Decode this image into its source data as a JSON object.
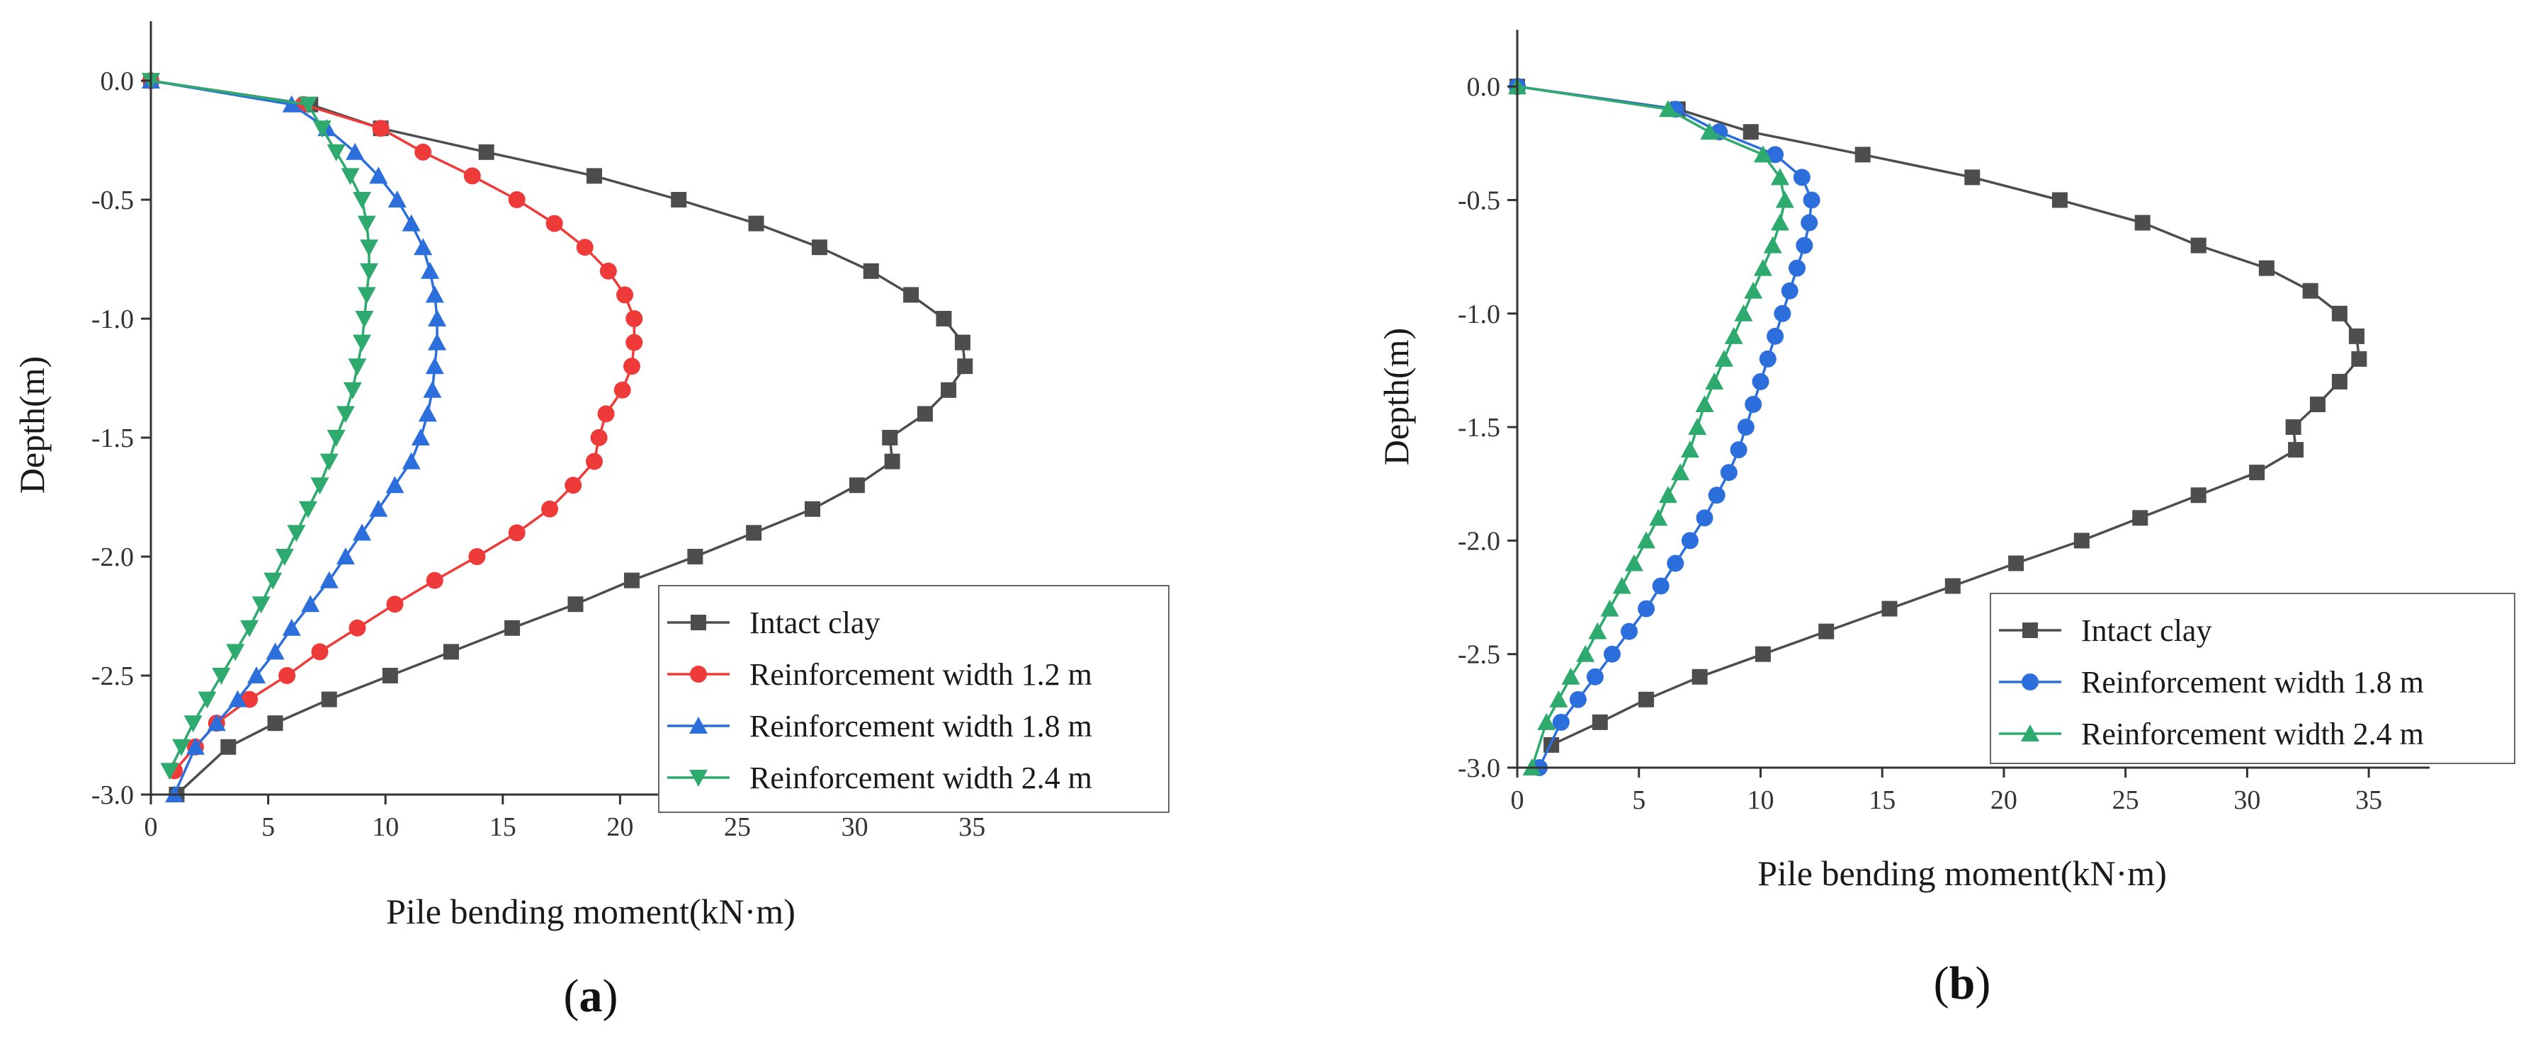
{
  "colors": {
    "intact": "#4d4d4d",
    "w12": "#ef3a3a",
    "w18": "#2c6fdc",
    "w24": "#2eaa6e"
  },
  "chart_data": [
    {
      "panel": "(a)",
      "panel_letter": "a",
      "type": "line",
      "xlabel": "Pile bending moment(kN·m)",
      "ylabel": "Depth(m)",
      "xlim": [
        0,
        37.5
      ],
      "ylim": [
        -3.0,
        0.25
      ],
      "xticks": [
        0,
        5,
        10,
        15,
        20,
        25,
        30,
        35
      ],
      "xtick_labels": [
        "0",
        "5",
        "10",
        "15",
        "20",
        "25",
        "30",
        "35"
      ],
      "yticks": [
        0,
        -0.5,
        -1,
        -1.5,
        -2,
        -2.5,
        -3
      ],
      "ytick_labels": [
        "0.0",
        "-0.5",
        "-1.0",
        "-1.5",
        "-2.0",
        "-2.5",
        "-3.0"
      ],
      "legend_position": "bottom-right",
      "series": [
        {
          "name": "Intact clay",
          "marker": "square",
          "color_key": "intact",
          "x": [
            0,
            6.8,
            9.8,
            14.3,
            18.9,
            22.5,
            25.8,
            28.5,
            30.7,
            32.4,
            33.8,
            34.6,
            34.7,
            34.0,
            33.0,
            31.5,
            31.6,
            30.1,
            28.2,
            25.7,
            23.2,
            20.5,
            18.1,
            15.4,
            12.8,
            10.2,
            7.6,
            5.3,
            3.3,
            1.1
          ],
          "y": [
            0,
            -0.1,
            -0.2,
            -0.3,
            -0.4,
            -0.5,
            -0.6,
            -0.7,
            -0.8,
            -0.9,
            -1.0,
            -1.1,
            -1.2,
            -1.3,
            -1.4,
            -1.5,
            -1.6,
            -1.7,
            -1.8,
            -1.9,
            -2.0,
            -2.1,
            -2.2,
            -2.3,
            -2.4,
            -2.5,
            -2.6,
            -2.7,
            -2.8,
            -3.0
          ]
        },
        {
          "name": "Reinforcement width 1.2 m",
          "marker": "circle",
          "color_key": "w12",
          "x": [
            0,
            6.5,
            9.8,
            11.6,
            13.7,
            15.6,
            17.2,
            18.5,
            19.5,
            20.2,
            20.6,
            20.6,
            20.5,
            20.1,
            19.4,
            19.1,
            18.9,
            18.0,
            17.0,
            15.6,
            13.9,
            12.1,
            10.4,
            8.8,
            7.2,
            5.8,
            4.2,
            2.8,
            1.9,
            1.0
          ],
          "y": [
            0,
            -0.1,
            -0.2,
            -0.3,
            -0.4,
            -0.5,
            -0.6,
            -0.7,
            -0.8,
            -0.9,
            -1.0,
            -1.1,
            -1.2,
            -1.3,
            -1.4,
            -1.5,
            -1.6,
            -1.7,
            -1.8,
            -1.9,
            -2.0,
            -2.1,
            -2.2,
            -2.3,
            -2.4,
            -2.5,
            -2.6,
            -2.7,
            -2.8,
            -2.9
          ]
        },
        {
          "name": "Reinforcement width 1.8 m",
          "marker": "triangle-up",
          "color_key": "w18",
          "x": [
            0,
            6.0,
            7.5,
            8.7,
            9.7,
            10.5,
            11.1,
            11.6,
            11.9,
            12.1,
            12.2,
            12.2,
            12.1,
            12.0,
            11.8,
            11.5,
            11.1,
            10.4,
            9.7,
            9.0,
            8.3,
            7.6,
            6.8,
            6.0,
            5.3,
            4.5,
            3.7,
            2.8,
            1.9,
            1.0
          ],
          "y": [
            0,
            -0.1,
            -0.2,
            -0.3,
            -0.4,
            -0.5,
            -0.6,
            -0.7,
            -0.8,
            -0.9,
            -1.0,
            -1.1,
            -1.2,
            -1.3,
            -1.4,
            -1.5,
            -1.6,
            -1.7,
            -1.8,
            -1.9,
            -2.0,
            -2.1,
            -2.2,
            -2.3,
            -2.4,
            -2.5,
            -2.6,
            -2.7,
            -2.8,
            -3.0
          ]
        },
        {
          "name": "Reinforcement width 2.4 m",
          "marker": "triangle-down",
          "color_key": "w24",
          "x": [
            0,
            6.7,
            7.3,
            7.9,
            8.5,
            9.0,
            9.2,
            9.3,
            9.3,
            9.2,
            9.1,
            9.0,
            8.8,
            8.6,
            8.3,
            7.9,
            7.6,
            7.2,
            6.7,
            6.2,
            5.7,
            5.2,
            4.7,
            4.2,
            3.6,
            3.0,
            2.4,
            1.8,
            1.3,
            0.8
          ],
          "y": [
            0,
            -0.1,
            -0.2,
            -0.3,
            -0.4,
            -0.5,
            -0.6,
            -0.7,
            -0.8,
            -0.9,
            -1.0,
            -1.1,
            -1.2,
            -1.3,
            -1.4,
            -1.5,
            -1.6,
            -1.7,
            -1.8,
            -1.9,
            -2.0,
            -2.1,
            -2.2,
            -2.3,
            -2.4,
            -2.5,
            -2.6,
            -2.7,
            -2.8,
            -2.9
          ]
        }
      ]
    },
    {
      "panel": "(b)",
      "panel_letter": "b",
      "type": "line",
      "xlabel": "Pile bending moment(kN·m)",
      "ylabel": "Depth(m)",
      "xlim": [
        0,
        37.5
      ],
      "ylim": [
        -3.0,
        0.25
      ],
      "xticks": [
        0,
        5,
        10,
        15,
        20,
        25,
        30,
        35
      ],
      "xtick_labels": [
        "0",
        "5",
        "10",
        "15",
        "20",
        "25",
        "30",
        "35"
      ],
      "yticks": [
        0,
        -0.5,
        -1,
        -1.5,
        -2,
        -2.5,
        -3
      ],
      "ytick_labels": [
        "0.0",
        "-0.5",
        "-1.0",
        "-1.5",
        "-2.0",
        "-2.5",
        "-3.0"
      ],
      "legend_position": "bottom-right",
      "series": [
        {
          "name": "Intact clay",
          "marker": "square",
          "color_key": "intact",
          "x": [
            0,
            6.6,
            9.6,
            14.2,
            18.7,
            22.3,
            25.7,
            28.0,
            30.8,
            32.6,
            33.8,
            34.5,
            34.6,
            33.8,
            32.9,
            31.9,
            32.0,
            30.4,
            28.0,
            25.6,
            23.2,
            20.5,
            17.9,
            15.3,
            12.7,
            10.1,
            7.5,
            5.3,
            3.4,
            1.4
          ],
          "y": [
            0,
            -0.1,
            -0.2,
            -0.3,
            -0.4,
            -0.5,
            -0.6,
            -0.7,
            -0.8,
            -0.9,
            -1.0,
            -1.1,
            -1.2,
            -1.3,
            -1.4,
            -1.5,
            -1.6,
            -1.7,
            -1.8,
            -1.9,
            -2.0,
            -2.1,
            -2.2,
            -2.3,
            -2.4,
            -2.5,
            -2.6,
            -2.7,
            -2.8,
            -2.9
          ]
        },
        {
          "name": "Reinforcement width 1.8 m",
          "marker": "circle",
          "color_key": "w18",
          "x": [
            0,
            6.5,
            8.3,
            10.6,
            11.7,
            12.1,
            12.0,
            11.8,
            11.5,
            11.2,
            10.9,
            10.6,
            10.3,
            10.0,
            9.7,
            9.4,
            9.1,
            8.7,
            8.2,
            7.7,
            7.1,
            6.5,
            5.9,
            5.3,
            4.6,
            3.9,
            3.2,
            2.5,
            1.8,
            0.9
          ],
          "y": [
            0,
            -0.1,
            -0.2,
            -0.3,
            -0.4,
            -0.5,
            -0.6,
            -0.7,
            -0.8,
            -0.9,
            -1.0,
            -1.1,
            -1.2,
            -1.3,
            -1.4,
            -1.5,
            -1.6,
            -1.7,
            -1.8,
            -1.9,
            -2.0,
            -2.1,
            -2.2,
            -2.3,
            -2.4,
            -2.5,
            -2.6,
            -2.7,
            -2.8,
            -3.0
          ]
        },
        {
          "name": "Reinforcement width 2.4 m",
          "marker": "triangle-up",
          "color_key": "w24",
          "x": [
            0,
            6.2,
            7.9,
            10.1,
            10.8,
            11.0,
            10.8,
            10.5,
            10.1,
            9.7,
            9.3,
            8.9,
            8.5,
            8.1,
            7.7,
            7.4,
            7.1,
            6.7,
            6.2,
            5.8,
            5.3,
            4.8,
            4.3,
            3.8,
            3.3,
            2.8,
            2.2,
            1.7,
            1.2,
            0.6
          ],
          "y": [
            0,
            -0.1,
            -0.2,
            -0.3,
            -0.4,
            -0.5,
            -0.6,
            -0.7,
            -0.8,
            -0.9,
            -1.0,
            -1.1,
            -1.2,
            -1.3,
            -1.4,
            -1.5,
            -1.6,
            -1.7,
            -1.8,
            -1.9,
            -2.0,
            -2.1,
            -2.2,
            -2.3,
            -2.4,
            -2.5,
            -2.6,
            -2.7,
            -2.8,
            -3.0
          ]
        }
      ]
    }
  ]
}
